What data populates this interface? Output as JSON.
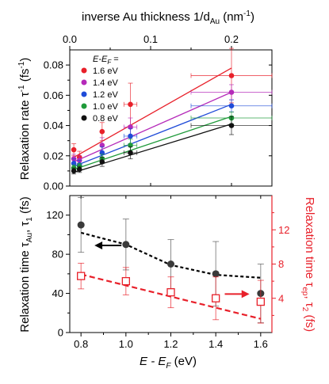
{
  "chart_data": [
    {
      "type": "scatter",
      "panel": "top",
      "xlabel_top": "inverse Au thickness 1/d",
      "xlabel_top_sub": "Au",
      "xlabel_top_unit": " (nm",
      "xlabel_top_sup": "-1",
      "xlabel_top_close": ")",
      "ylabel": "Relaxation rate τ",
      "ylabel_sup": "-1",
      "ylabel_unit": " (fs",
      "ylabel_unit_sup": "-1",
      "ylabel_close": ")",
      "xlim": [
        0,
        0.25
      ],
      "ylim": [
        0,
        0.09
      ],
      "x_ticks": [
        0,
        0.1,
        0.2
      ],
      "x_tick_labels": [
        "0.0",
        "0.1",
        "0.2"
      ],
      "y_ticks": [
        0,
        0.02,
        0.04,
        0.06,
        0.08
      ],
      "y_tick_labels": [
        "0.00",
        "0.02",
        "0.04",
        "0.06",
        "0.08"
      ],
      "legend_title": "E-E",
      "legend_title_sub": "F",
      "legend_title_tail": " =",
      "legend_placement": "top-left",
      "series": [
        {
          "name": "1.6 eV",
          "color": "#e8202a",
          "x": [
            0.005,
            0.012,
            0.04,
            0.075,
            0.2
          ],
          "y": [
            0.024,
            0.019,
            0.036,
            0.054,
            0.073
          ],
          "yerr": [
            0.004,
            0.004,
            0.006,
            0.014,
            0.018
          ],
          "xerr": [
            0.0,
            0.0,
            0.0,
            0.008,
            0.05
          ],
          "fit": [
            [
              0.005,
              0.019
            ],
            [
              0.2,
              0.078
            ]
          ]
        },
        {
          "name": "1.4 eV",
          "color": "#b52ab9",
          "x": [
            0.005,
            0.012,
            0.04,
            0.075,
            0.2
          ],
          "y": [
            0.018,
            0.017,
            0.027,
            0.039,
            0.062
          ],
          "yerr": [
            0.003,
            0.003,
            0.005,
            0.006,
            0.005
          ],
          "xerr": [
            0.0,
            0.0,
            0.0,
            0.008,
            0.05
          ],
          "fit": [
            [
              0.005,
              0.016
            ],
            [
              0.2,
              0.062
            ]
          ]
        },
        {
          "name": "1.2 eV",
          "color": "#1f4bd8",
          "x": [
            0.005,
            0.012,
            0.04,
            0.075,
            0.2
          ],
          "y": [
            0.015,
            0.014,
            0.022,
            0.033,
            0.053
          ],
          "yerr": [
            0.003,
            0.003,
            0.004,
            0.005,
            0.004
          ],
          "xerr": [
            0.0,
            0.0,
            0.0,
            0.008,
            0.05
          ],
          "fit": [
            [
              0.005,
              0.013
            ],
            [
              0.2,
              0.054
            ]
          ]
        },
        {
          "name": "1.0 eV",
          "color": "#1f9a3a",
          "x": [
            0.005,
            0.012,
            0.04,
            0.075,
            0.2
          ],
          "y": [
            0.012,
            0.013,
            0.018,
            0.027,
            0.045
          ],
          "yerr": [
            0.002,
            0.002,
            0.003,
            0.004,
            0.004
          ],
          "xerr": [
            0.0,
            0.0,
            0.0,
            0.008,
            0.05
          ],
          "fit": [
            [
              0.005,
              0.011
            ],
            [
              0.2,
              0.046
            ]
          ]
        },
        {
          "name": "0.8 eV",
          "color": "#111111",
          "x": [
            0.005,
            0.012,
            0.04,
            0.075,
            0.2
          ],
          "y": [
            0.01,
            0.011,
            0.016,
            0.022,
            0.04
          ],
          "yerr": [
            0.002,
            0.002,
            0.003,
            0.004,
            0.006
          ],
          "xerr": [
            0.0,
            0.0,
            0.0,
            0.008,
            0.05
          ],
          "fit": [
            [
              0.005,
              0.009
            ],
            [
              0.2,
              0.041
            ]
          ]
        }
      ]
    },
    {
      "type": "scatter",
      "panel": "bottom",
      "xlabel": "E - E",
      "xlabel_sub": "F",
      "xlabel_unit": " (eV)",
      "ylabel_left": "Relaxation time τ",
      "ylabel_left_sub1": "Au",
      "ylabel_left_mid": ", τ",
      "ylabel_left_sub2": "1",
      "ylabel_left_unit": " (fs)",
      "ylabel_right": "Relaxation time τ",
      "ylabel_right_sub1": "ep",
      "ylabel_right_mid": ", τ",
      "ylabel_right_sub2": "2",
      "ylabel_right_unit": " (fs)",
      "right_axis_color": "#e8202a",
      "xlim": [
        0.75,
        1.65
      ],
      "ylim_left": [
        0,
        140
      ],
      "ylim_right": [
        0,
        16
      ],
      "x_ticks": [
        0.8,
        1.0,
        1.2,
        1.4,
        1.6
      ],
      "x_tick_labels": [
        "0.8",
        "1.0",
        "1.2",
        "1.4",
        "1.6"
      ],
      "y_left_ticks": [
        0,
        40,
        80,
        120
      ],
      "y_left_tick_labels": [
        "0",
        "40",
        "80",
        "120"
      ],
      "y_right_ticks": [
        4,
        8,
        12
      ],
      "y_right_tick_labels": [
        "4",
        "8",
        "12"
      ],
      "series": [
        {
          "name": "τAu, τ1",
          "axis": "left",
          "color": "#333333",
          "x": [
            0.8,
            1.0,
            1.2,
            1.4,
            1.6
          ],
          "y": [
            110,
            90,
            70,
            60,
            40
          ],
          "yerr": [
            28,
            26,
            25,
            33,
            30
          ],
          "fit": [
            [
              0.8,
              102
            ],
            [
              1.0,
              90
            ],
            [
              1.2,
              69
            ],
            [
              1.4,
              59
            ],
            [
              1.6,
              56
            ]
          ]
        },
        {
          "name": "τep, τ2",
          "axis": "right",
          "color": "#e8202a",
          "x": [
            0.8,
            1.0,
            1.2,
            1.4,
            1.6
          ],
          "y": [
            6.6,
            6.0,
            4.7,
            4.0,
            3.6
          ],
          "yerr": [
            1.5,
            1.6,
            1.8,
            2.5,
            2.5
          ],
          "fit": [
            [
              0.8,
              6.8
            ],
            [
              1.6,
              1.6
            ]
          ]
        }
      ],
      "arrows": [
        {
          "series": "left",
          "direction": "left"
        },
        {
          "series": "right",
          "direction": "right"
        }
      ]
    }
  ]
}
